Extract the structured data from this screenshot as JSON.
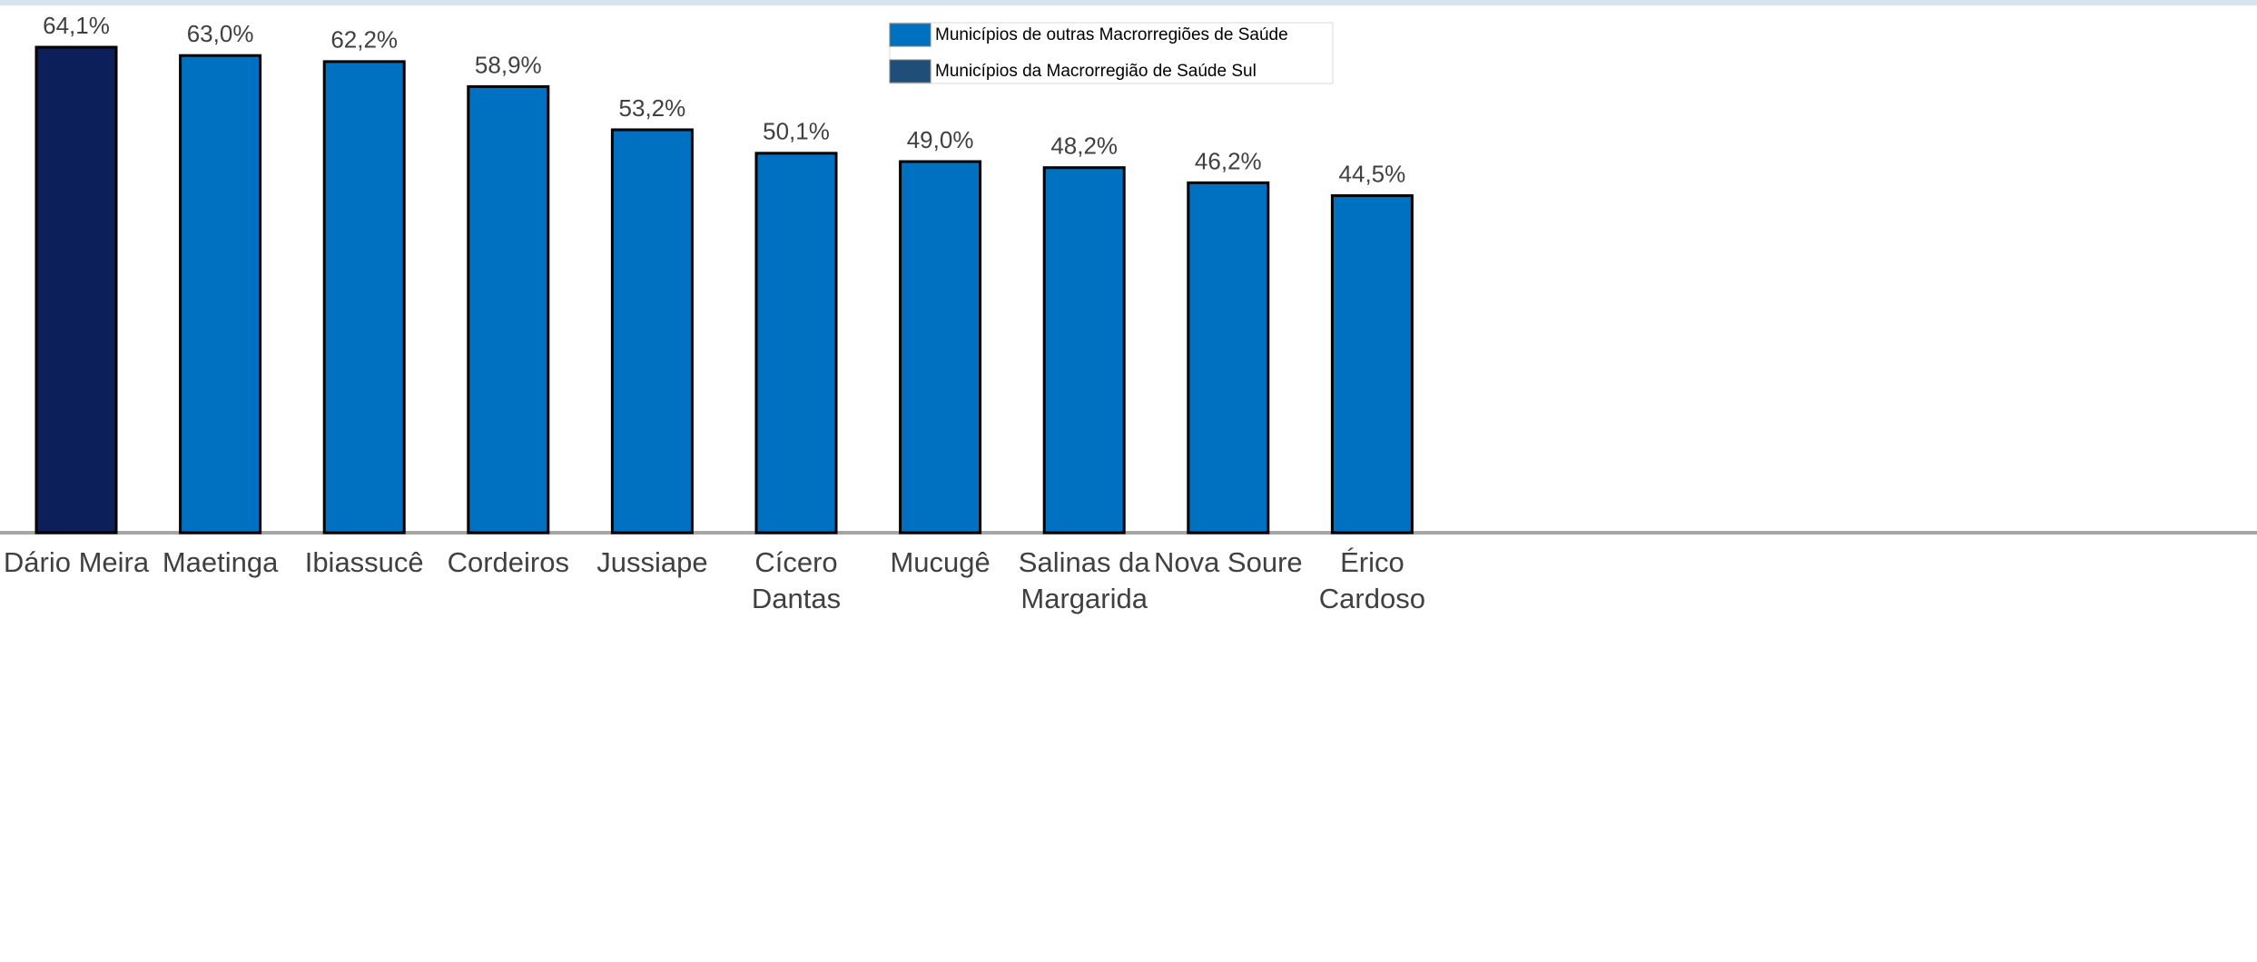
{
  "chart_data": {
    "type": "bar",
    "categories": [
      "Dário Meira",
      "Maetinga",
      "Ibiassucê",
      "Cordeiros",
      "Jussiape",
      "Cícero Dantas",
      "Mucugê",
      "Salinas da Margarida",
      "Nova Soure",
      "Érico Cardoso"
    ],
    "series": [
      {
        "name": "Municípios de outras Macrorregiões de Saúde",
        "color": "#0070c0",
        "values": [
          null,
          63.0,
          62.2,
          58.9,
          53.2,
          50.1,
          49.0,
          48.2,
          46.2,
          44.5
        ],
        "value_labels": [
          null,
          "63,0%",
          "62,2%",
          "58,9%",
          "53,2%",
          "50,1%",
          "49,0%",
          "48,2%",
          "46,2%",
          "44,5%"
        ]
      },
      {
        "name": "Municípios da Macrorregião de Saúde Sul",
        "color": "#0c1f5a",
        "values": [
          64.1,
          null,
          null,
          null,
          null,
          null,
          null,
          null,
          null,
          null
        ],
        "value_labels": [
          "64,1%",
          null,
          null,
          null,
          null,
          null,
          null,
          null,
          null,
          null
        ]
      }
    ]
  }
}
